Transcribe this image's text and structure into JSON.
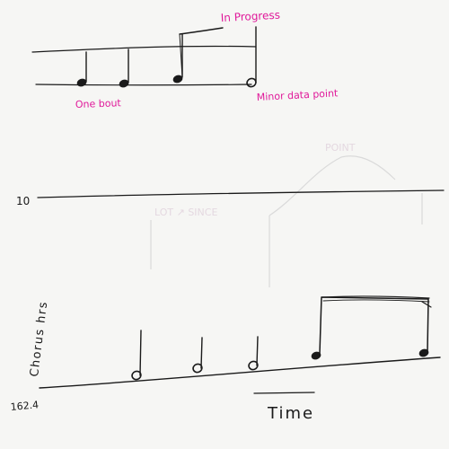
{
  "legend": {
    "in_progress_label": "In Progress",
    "one_bout_label": "One bout",
    "minor_data_point_label": "Minor data point"
  },
  "graph": {
    "y_axis_label": "Chorus hrs",
    "y_top_value": "10",
    "y_bottom_value": "162.4",
    "x_axis_label": "Time"
  },
  "colors": {
    "ink": "#1a1a1a",
    "annotation": "#e0199a",
    "paper": "#f6f6f4"
  }
}
